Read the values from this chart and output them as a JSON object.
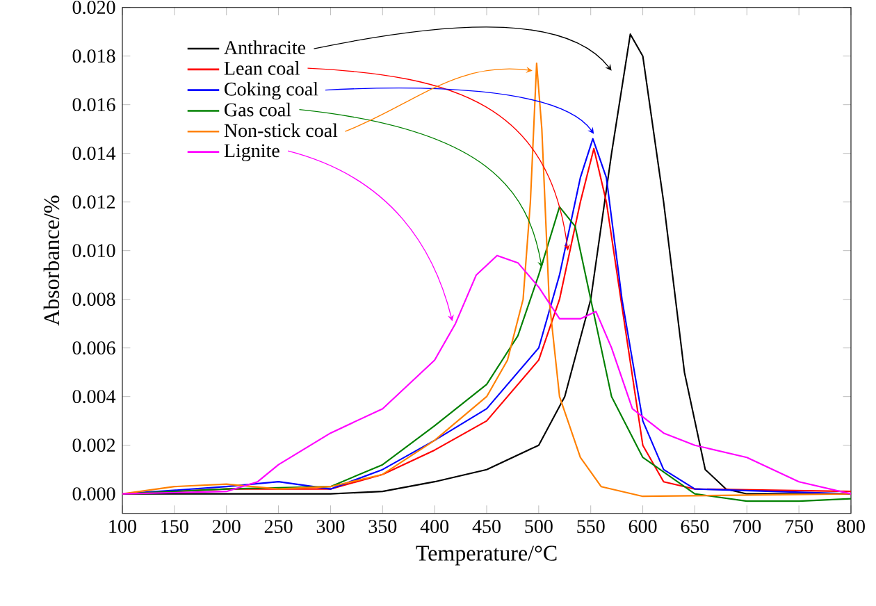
{
  "chart_data": {
    "type": "line",
    "xlabel": "Temperature/°C",
    "ylabel": "Absorbance/%",
    "xlim": [
      100,
      800
    ],
    "ylim": [
      -0.0008,
      0.02
    ],
    "xticks": [
      100,
      150,
      200,
      250,
      300,
      350,
      400,
      450,
      500,
      550,
      600,
      650,
      700,
      750,
      800
    ],
    "yticks": [
      {
        "value": 0,
        "label": "0.000"
      },
      {
        "value": 0.002,
        "label": "0.002"
      },
      {
        "value": 0.004,
        "label": "0.004"
      },
      {
        "value": 0.006,
        "label": "0.006"
      },
      {
        "value": 0.008,
        "label": "0.008"
      },
      {
        "value": 0.01,
        "label": "0.010"
      },
      {
        "value": 0.012,
        "label": "0.012"
      },
      {
        "value": 0.014,
        "label": "0.014"
      },
      {
        "value": 0.016,
        "label": "0.016"
      },
      {
        "value": 0.018,
        "label": "0.018"
      },
      {
        "value": 0.02,
        "label": "0.020"
      }
    ],
    "legend": "top left",
    "grid": false,
    "marker": "none",
    "line_style": "solid",
    "series": [
      {
        "name": "Anthracite",
        "color": "#000000",
        "x": [
          100,
          200,
          300,
          350,
          400,
          450,
          500,
          525,
          550,
          570,
          588,
          600,
          620,
          640,
          660,
          680,
          700,
          800
        ],
        "values": [
          0,
          0,
          0,
          0.0001,
          0.0005,
          0.001,
          0.002,
          0.004,
          0.008,
          0.014,
          0.0189,
          0.018,
          0.012,
          0.005,
          0.001,
          0.0002,
          0,
          0
        ]
      },
      {
        "name": "Lean coal",
        "color": "#ff0000",
        "x": [
          100,
          200,
          300,
          350,
          400,
          450,
          500,
          520,
          540,
          553,
          565,
          580,
          600,
          620,
          650,
          800
        ],
        "values": [
          0,
          0.0002,
          0.0002,
          0.0008,
          0.0018,
          0.003,
          0.0055,
          0.008,
          0.012,
          0.0142,
          0.012,
          0.0077,
          0.002,
          0.0005,
          0.0002,
          0.0001
        ]
      },
      {
        "name": "Coking coal",
        "color": "#0000ff",
        "x": [
          100,
          200,
          250,
          300,
          350,
          400,
          450,
          500,
          520,
          540,
          552,
          565,
          580,
          600,
          620,
          650,
          800
        ],
        "values": [
          0,
          0.0003,
          0.0005,
          0.0002,
          0.001,
          0.0022,
          0.0035,
          0.006,
          0.009,
          0.013,
          0.0146,
          0.013,
          0.008,
          0.003,
          0.001,
          0.0002,
          0
        ]
      },
      {
        "name": "Gas coal",
        "color": "#008000",
        "x": [
          100,
          200,
          300,
          350,
          400,
          450,
          480,
          500,
          520,
          535,
          550,
          570,
          600,
          650,
          700,
          750,
          800
        ],
        "values": [
          0,
          0.0002,
          0.0003,
          0.0012,
          0.0028,
          0.0045,
          0.0065,
          0.009,
          0.0118,
          0.011,
          0.008,
          0.004,
          0.0015,
          0,
          -0.0003,
          -0.0003,
          -0.0002
        ]
      },
      {
        "name": "Non-stick coal",
        "color": "#ff8000",
        "x": [
          100,
          150,
          200,
          250,
          300,
          350,
          400,
          450,
          470,
          485,
          492,
          498,
          503,
          510,
          520,
          540,
          560,
          600,
          800
        ],
        "values": [
          0,
          0.0003,
          0.0004,
          0.0002,
          0.0003,
          0.0008,
          0.0022,
          0.004,
          0.0055,
          0.008,
          0.012,
          0.0177,
          0.015,
          0.008,
          0.004,
          0.0015,
          0.0003,
          -0.0001,
          0
        ]
      },
      {
        "name": "Lignite",
        "color": "#ff00ff",
        "x": [
          100,
          200,
          230,
          250,
          300,
          350,
          400,
          420,
          440,
          460,
          480,
          500,
          520,
          540,
          555,
          570,
          590,
          620,
          650,
          700,
          750,
          800
        ],
        "values": [
          0,
          0.0001,
          0.0005,
          0.0012,
          0.0025,
          0.0035,
          0.0055,
          0.007,
          0.009,
          0.0098,
          0.0095,
          0.0085,
          0.0072,
          0.0072,
          0.0075,
          0.006,
          0.0035,
          0.0025,
          0.002,
          0.0015,
          0.0005,
          0
        ]
      }
    ]
  }
}
